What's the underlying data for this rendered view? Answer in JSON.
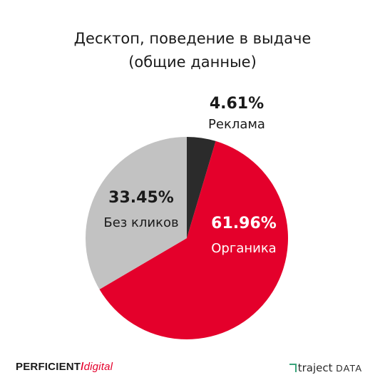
{
  "chart_data": {
    "type": "pie",
    "title": "Десктоп, поведение в выдаче",
    "subtitle": "(общие данные)",
    "slices": [
      {
        "label": "Реклама",
        "value": 4.61,
        "value_label": "4.61%",
        "color": "#2b2b2b",
        "label_color": "#1a1a1a"
      },
      {
        "label": "Органика",
        "value": 61.96,
        "value_label": "61.96%",
        "color": "#e4002b",
        "label_color": "#ffffff"
      },
      {
        "label": "Без кликов",
        "value": 33.45,
        "value_label": "33.45%",
        "color": "#c2c2c2",
        "label_color": "#1a1a1a"
      }
    ]
  },
  "logos": {
    "left_brand": "PERFICIENT",
    "left_slash": "/",
    "left_sub": "digital",
    "right_brand": "traject",
    "right_sub": "DATA"
  }
}
